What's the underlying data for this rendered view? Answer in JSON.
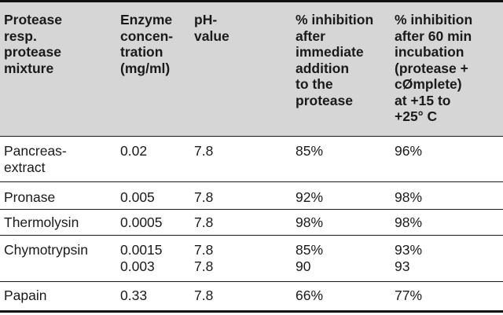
{
  "table": {
    "headers": [
      "Protease\nresp.\nprotease\nmixture",
      "Enzyme\nconcen-\ntration\n(mg/ml)",
      "pH-\nvalue",
      "% inhibition\nafter\nimmediate\naddition\nto the\nprotease",
      "% inhibition\nafter 60 min\nincubation\n(protease +\ncØmplete)\nat +15 to\n+25° C"
    ],
    "rows": [
      {
        "protease": "Pancreas-\nextract",
        "concentration": "0.02",
        "ph": "7.8",
        "immediate": "85%",
        "incubation": "96%"
      },
      {
        "protease": "Pronase",
        "concentration": "0.005",
        "ph": "7.8",
        "immediate": "92%",
        "incubation": "98%"
      },
      {
        "protease": "Thermolysin",
        "concentration": "0.0005",
        "ph": "7.8",
        "immediate": "98%",
        "incubation": "98%"
      },
      {
        "protease": "Chymotrypsin",
        "concentration": "0.0015\n0.003",
        "ph": "7.8\n7.8",
        "immediate": "85%\n90",
        "incubation": "93%\n93"
      },
      {
        "protease": "Papain",
        "concentration": "0.33",
        "ph": "7.8",
        "immediate": "66%",
        "incubation": "77%"
      }
    ]
  }
}
